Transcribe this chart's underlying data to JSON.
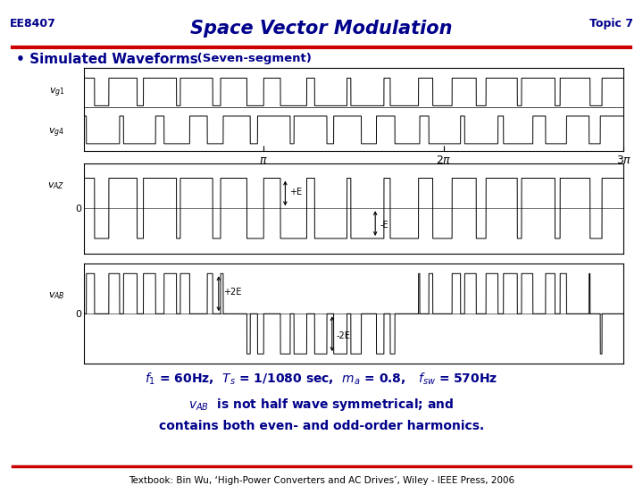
{
  "title": "Space Vector Modulation",
  "header_left": "EE8407",
  "header_right": "Topic 7",
  "bullet_main": "Simulated Waveforms",
  "bullet_paren": "(Seven-segment)",
  "footer": "Textbook: Bin Wu, ‘High-Power Converters and AC Drives’, Wiley - IEEE Press, 2006",
  "title_color": "#00008B",
  "header_color": "#00008B",
  "text_color": "#00008B",
  "red_line_color": "#CC0000",
  "bg_color": "#FFFFFF",
  "f1": 60,
  "fsw": 570,
  "ma": 0.8,
  "n_periods": 3
}
